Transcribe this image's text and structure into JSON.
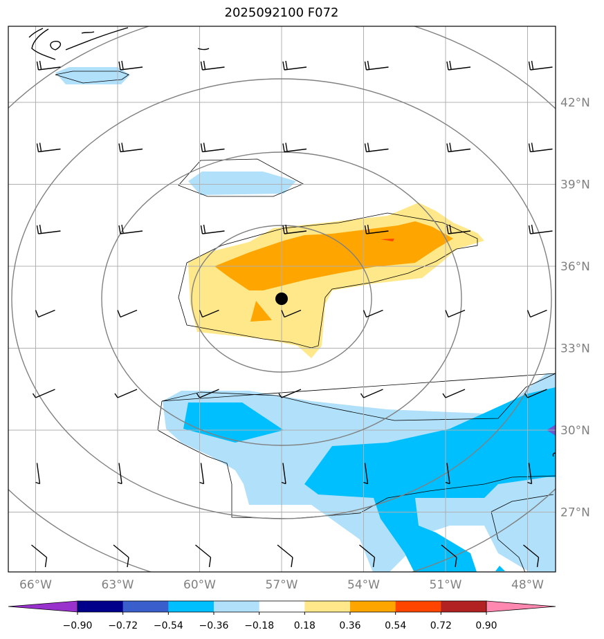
{
  "title": "2025092100 F072",
  "map": {
    "lon_range": [
      -67,
      -47
    ],
    "lat_range": [
      25,
      45
    ],
    "center_marker": {
      "lon": -57,
      "lat": 34.8
    }
  },
  "lon_labels": [
    {
      "lon": -66,
      "text": "66°W"
    },
    {
      "lon": -63,
      "text": "63°W"
    },
    {
      "lon": -60,
      "text": "60°W"
    },
    {
      "lon": -57,
      "text": "57°W"
    },
    {
      "lon": -54,
      "text": "54°W"
    },
    {
      "lon": -51,
      "text": "51°W"
    },
    {
      "lon": -48,
      "text": "48°W"
    }
  ],
  "lat_labels": [
    {
      "lat": 42,
      "text": "42°N"
    },
    {
      "lat": 39,
      "text": "39°N"
    },
    {
      "lat": 36,
      "text": "36°N"
    },
    {
      "lat": 33,
      "text": "33°N"
    },
    {
      "lat": 30,
      "text": "30°N"
    },
    {
      "lat": 27,
      "text": "27°N"
    }
  ],
  "colorbar": {
    "ticks": [
      "−0.90",
      "−0.72",
      "−0.54",
      "−0.36",
      "−0.18",
      "0.18",
      "0.36",
      "0.54",
      "0.72",
      "0.90"
    ],
    "colors": [
      "#9932cc",
      "#00008b",
      "#3a5fcd",
      "#00bfff",
      "#b0e0fa",
      "#ffffff",
      "#ffe88a",
      "#ffa500",
      "#ff4500",
      "#b22222",
      "#ff88b0"
    ]
  },
  "colors": {
    "light_blue": "#b0e0fa",
    "blue": "#00bfff",
    "light_yellow": "#ffe88a",
    "orange": "#ffa500",
    "red": "#ff4500",
    "purple": "#6a5acd",
    "grid": "#b0b0b0",
    "range_ring": "#808080"
  }
}
